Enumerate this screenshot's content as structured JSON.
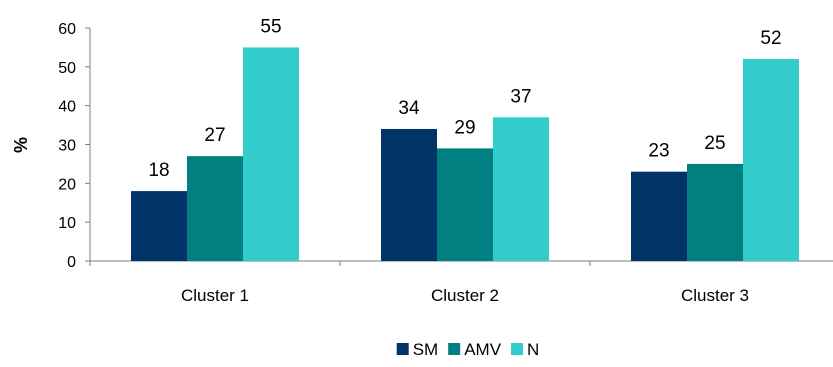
{
  "chart_data": {
    "type": "bar",
    "categories": [
      "Cluster 1",
      "Cluster 2",
      "Cluster 3"
    ],
    "series": [
      {
        "name": "SM",
        "color": "#003366",
        "values": [
          18,
          34,
          23
        ],
        "labels": [
          "18",
          "34",
          "23"
        ]
      },
      {
        "name": "AMV",
        "color": "#008080",
        "values": [
          27,
          29,
          25
        ],
        "labels": [
          "27",
          "29",
          "25"
        ]
      },
      {
        "name": "N",
        "color": "#33CCCC",
        "values": [
          55,
          37,
          52
        ],
        "labels": [
          "55",
          "37",
          "52"
        ]
      }
    ],
    "title": "",
    "xlabel": "",
    "ylabel": "%",
    "ylim": [
      0,
      60
    ],
    "yticks": [
      0,
      10,
      20,
      30,
      40,
      50,
      60
    ],
    "grid": false,
    "legend_position": "bottom-center"
  }
}
